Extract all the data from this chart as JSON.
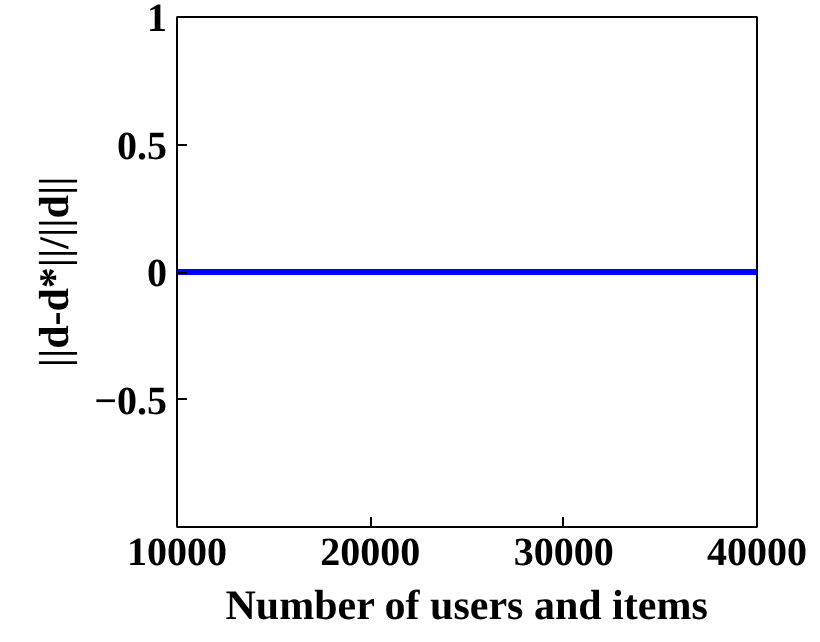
{
  "chart_data": {
    "type": "line",
    "xlabel": "Number of users and items",
    "ylabel": "||d-d*||/||d||",
    "x": [
      10000,
      40000
    ],
    "series": [
      {
        "color": "#0000ff",
        "values": [
          0,
          0
        ]
      }
    ],
    "xlim": [
      10000,
      40000
    ],
    "xticks": [
      10000,
      20000,
      30000,
      40000
    ],
    "ylim": [
      -1,
      1
    ],
    "yticks": [
      -0.5,
      0,
      0.5,
      1
    ],
    "grid": false,
    "marker": "none",
    "line_style": "solid"
  }
}
